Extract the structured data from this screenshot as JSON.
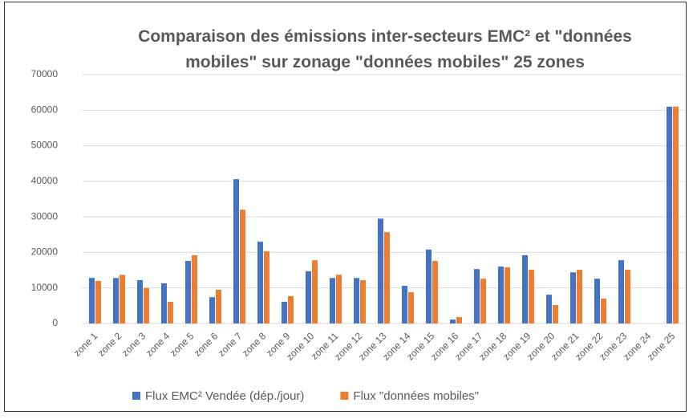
{
  "chart_data": {
    "type": "bar",
    "title": "Comparaison des émissions inter-secteurs EMC² et \"données mobiles\" sur zonage \"données mobiles\" 25 zones",
    "categories": [
      "zone 1",
      "zone 2",
      "zone 3",
      "zone 4",
      "zone 5",
      "zone 6",
      "zone 7",
      "zone 8",
      "zone 9",
      "zone 10",
      "zone 11",
      "zone 12",
      "zone 13",
      "zone 14",
      "zone 15",
      "zone 16",
      "zone 17",
      "zone 18",
      "zone 19",
      "zone 20",
      "zone 21",
      "zone 22",
      "zone 23",
      "zone 24",
      "zone 25"
    ],
    "series": [
      {
        "name": "Flux EMC² Vendée (dép./jour)",
        "color": "#4472c4",
        "values": [
          12800,
          12800,
          12200,
          11300,
          17600,
          7400,
          40600,
          23000,
          6100,
          14700,
          12800,
          12800,
          29500,
          10600,
          20800,
          1100,
          15300,
          16000,
          19200,
          8100,
          14400,
          12600,
          17800,
          0,
          61000
        ]
      },
      {
        "name": "Flux \"données mobiles\"",
        "color": "#ed7d31",
        "values": [
          12000,
          13700,
          10000,
          6100,
          19200,
          9500,
          32000,
          20300,
          7700,
          17800,
          13700,
          12200,
          25700,
          8800,
          17600,
          1800,
          12600,
          15800,
          15100,
          5200,
          15100,
          7000,
          15100,
          0,
          61000
        ]
      }
    ],
    "ylim": [
      0,
      70000
    ],
    "yticks": [
      0,
      10000,
      20000,
      30000,
      40000,
      50000,
      60000,
      70000
    ],
    "grid": true,
    "legend": "bottom"
  }
}
